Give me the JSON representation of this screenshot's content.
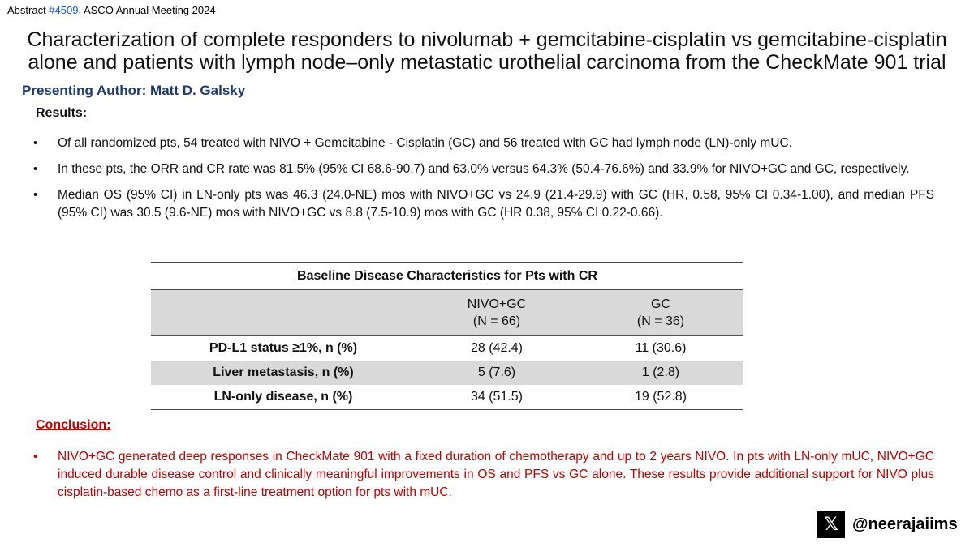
{
  "header": {
    "abstract_prefix": "Abstract ",
    "abstract_number": "#4509",
    "abstract_suffix": ", ASCO Annual Meeting 2024"
  },
  "title_line1": "Characterization of complete responders to nivolumab + gemcitabine-cisplatin vs gemcitabine-cisplatin",
  "title_line2": "alone and patients with lymph node–only metastatic urothelial carcinoma from the CheckMate 901 trial",
  "author": "Presenting Author: Matt D. Galsky",
  "results": {
    "heading": "Results:",
    "bullets": [
      "Of all randomized pts, 54 treated with NIVO + Gemcitabine - Cisplatin (GC) and 56 treated with GC had lymph node (LN)-only mUC.",
      "In these pts, the ORR and CR rate was 81.5% (95% CI 68.6-90.7) and 63.0% versus 64.3% (50.4-76.6%) and 33.9% for NIVO+GC and GC, respectively.",
      "Median OS (95% CI) in LN-only pts was 46.3 (24.0-NE) mos with NIVO+GC vs 24.9 (21.4-29.9) with GC (HR, 0.58, 95% CI 0.34-1.00), and median PFS (95% CI) was 30.5 (9.6-NE) mos with NIVO+GC vs 8.8 (7.5-10.9) mos with GC (HR 0.38, 95% CI 0.22-0.66)."
    ]
  },
  "table": {
    "caption": "Baseline Disease Characteristics for Pts with CR",
    "col1_name": "NIVO+GC",
    "col1_n": "(N = 66)",
    "col2_name": "GC",
    "col2_n": "(N = 36)",
    "rows": [
      {
        "label": "PD-L1 status ≥1%, n (%)",
        "nivo_gc": "28 (42.4)",
        "gc": "11 (30.6)"
      },
      {
        "label": "Liver metastasis, n (%)",
        "nivo_gc": "5 (7.6)",
        "gc": "1 (2.8)"
      },
      {
        "label": "LN-only disease, n (%)",
        "nivo_gc": "34 (51.5)",
        "gc": "19 (52.8)"
      }
    ]
  },
  "conclusion": {
    "heading": "Conclusion:",
    "bullets": [
      "NIVO+GC generated deep responses in CheckMate 901 with a fixed duration of chemotherapy and up to 2 years NIVO. In pts with LN-only mUC, NIVO+GC induced durable disease control and clinically meaningful improvements in OS and PFS vs GC alone. These results provide additional support for NIVO plus cisplatin-based chemo as a first-line treatment option for pts with mUC."
    ]
  },
  "social": {
    "logo_glyph": "𝕏",
    "handle": "@neerajaiims"
  },
  "colors": {
    "author": "#1f3a73",
    "conclusion": "#c00000",
    "abstract_number": "#1a56c4",
    "table_shade": "#d9d9d9"
  },
  "icons": {
    "social_logo": "x-logo-icon"
  }
}
